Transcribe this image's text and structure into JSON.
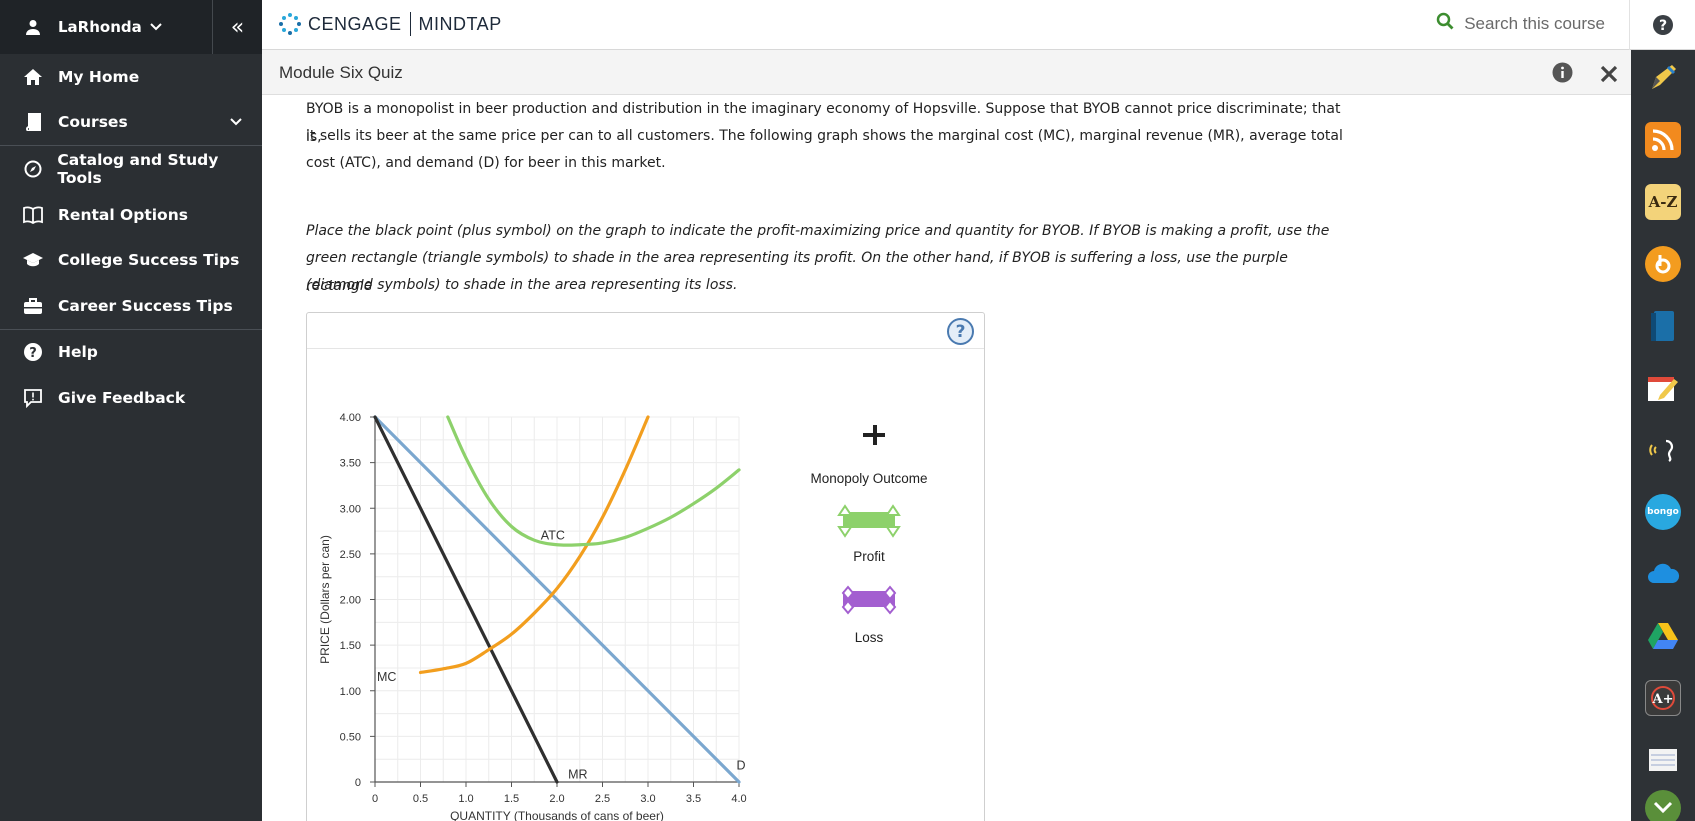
{
  "sidebar": {
    "user_name": "LaRhonda",
    "items": [
      {
        "label": "My Home",
        "icon": "home-icon"
      },
      {
        "label": "Courses",
        "icon": "book-icon"
      },
      {
        "label": "Catalog and Study Tools",
        "icon": "compass-icon"
      },
      {
        "label": "Rental Options",
        "icon": "open-book-icon"
      },
      {
        "label": "College Success Tips",
        "icon": "graduation-cap-icon"
      },
      {
        "label": "Career Success Tips",
        "icon": "briefcase-icon"
      },
      {
        "label": "Help",
        "icon": "help-icon"
      },
      {
        "label": "Give Feedback",
        "icon": "feedback-icon"
      }
    ]
  },
  "header": {
    "brand_left": "CENGAGE",
    "brand_right": "MINDTAP",
    "search_placeholder": "Search this course"
  },
  "quiz": {
    "title": "Module Six Quiz"
  },
  "content": {
    "intro_lines": [
      "BYOB is a monopolist in beer production and distribution in the imaginary economy of Hopsville. Suppose that BYOB cannot price discriminate; that is,",
      "it sells its beer at the same price per can to all customers. The following graph shows the marginal cost (MC), marginal revenue (MR), average total",
      "cost (ATC), and demand (D) for beer in this market."
    ],
    "instruction_lines": [
      "Place the black point (plus symbol) on the graph to indicate the profit-maximizing price and quantity for BYOB. If BYOB is making a profit, use the",
      "green rectangle (triangle symbols) to shade in the area representing its profit. On the other hand, if BYOB is suffering a loss, use the purple rectangle",
      "(diamond symbols) to shade in the area representing its loss."
    ]
  },
  "graph_tools": {
    "monopoly_label": "Monopoly Outcome",
    "profit_label": "Profit",
    "loss_label": "Loss",
    "help_glyph": "?",
    "colors": {
      "profit": "#8dd16b",
      "loss": "#a35fd0"
    }
  },
  "chart_data": {
    "type": "line",
    "xlabel": "QUANTITY (Thousands of cans of beer)",
    "ylabel": "PRICE (Dollars per can)",
    "xlim": [
      0,
      4.0
    ],
    "ylim": [
      0,
      4.0
    ],
    "x_ticks": [
      "0",
      "0.5",
      "1.0",
      "1.5",
      "2.0",
      "2.5",
      "3.0",
      "3.5",
      "4.0"
    ],
    "y_ticks": [
      "0",
      "0.50",
      "1.00",
      "1.50",
      "2.00",
      "2.50",
      "3.00",
      "3.50",
      "4.00"
    ],
    "grid": true,
    "series": [
      {
        "name": "D",
        "color": "#7ba7cf",
        "x": [
          0,
          4.0
        ],
        "y": [
          4.0,
          0
        ]
      },
      {
        "name": "MR",
        "color": "#2f2f2f",
        "x": [
          0,
          2.0
        ],
        "y": [
          4.0,
          0
        ]
      },
      {
        "name": "MC",
        "color": "#f29e1e",
        "x": [
          0.5,
          0.75,
          1.0,
          1.25,
          1.5,
          1.75,
          2.0,
          2.25,
          2.5,
          2.75,
          3.0
        ],
        "y": [
          1.2,
          1.24,
          1.3,
          1.45,
          1.62,
          1.85,
          2.12,
          2.47,
          2.9,
          3.42,
          4.0
        ]
      },
      {
        "name": "ATC",
        "color": "#8dd16b",
        "x": [
          0.8,
          1.0,
          1.25,
          1.5,
          1.75,
          2.0,
          2.25,
          2.5,
          2.75,
          3.0,
          3.25,
          3.5,
          3.75,
          4.0
        ],
        "y": [
          4.0,
          3.55,
          3.1,
          2.8,
          2.65,
          2.6,
          2.6,
          2.62,
          2.68,
          2.78,
          2.9,
          3.05,
          3.22,
          3.42
        ]
      }
    ],
    "annotations": [
      {
        "text": "ATC",
        "x": 1.8,
        "y": 2.7
      },
      {
        "text": "MC",
        "x": 0.0,
        "y": 1.15
      },
      {
        "text": "MR",
        "x": 2.1,
        "y": 0.08
      },
      {
        "text": "D",
        "x": 3.95,
        "y": 0.18
      }
    ]
  }
}
